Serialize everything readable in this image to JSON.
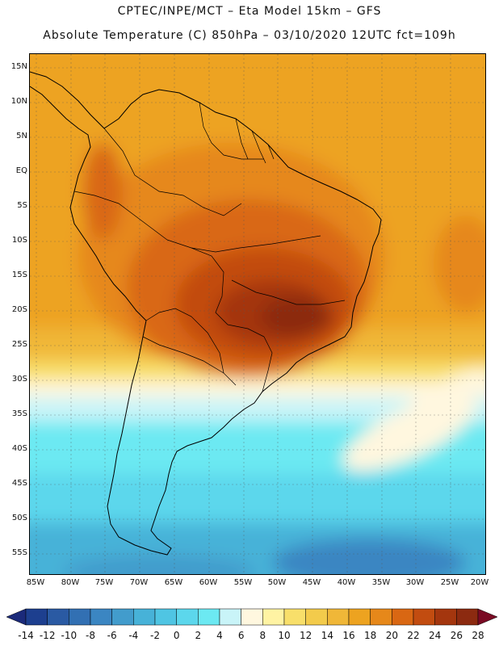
{
  "header": {
    "line1": "CPTEC/INPE/MCT –  Eta Model 15km – GFS",
    "line2": "Absolute Temperature (C) 850hPa – 03/10/2020 12UTC fct=109h"
  },
  "map": {
    "lat_labels": [
      "15N",
      "10N",
      "5N",
      "EQ",
      "5S",
      "10S",
      "15S",
      "20S",
      "25S",
      "30S",
      "35S",
      "40S",
      "45S",
      "50S",
      "55S"
    ],
    "lon_labels": [
      "85W",
      "80W",
      "75W",
      "70W",
      "65W",
      "60W",
      "55W",
      "50W",
      "45W",
      "40W",
      "35W",
      "30W",
      "25W",
      "20W"
    ],
    "region": "South America"
  },
  "colorbar": {
    "labels": [
      "-14",
      "-12",
      "-10",
      "-8",
      "-6",
      "-4",
      "-2",
      "0",
      "2",
      "4",
      "6",
      "8",
      "10",
      "12",
      "14",
      "16",
      "18",
      "20",
      "22",
      "24",
      "26",
      "28"
    ],
    "colors": [
      "#1d3f8f",
      "#2a5aa3",
      "#3270b3",
      "#3b86c2",
      "#429ccc",
      "#47b2d8",
      "#4fc5e3",
      "#5cd7ec",
      "#6ce9f2",
      "#c9f4f8",
      "#fff7df",
      "#fff3a3",
      "#f8df6a",
      "#f3cb4b",
      "#f0b738",
      "#eda320",
      "#e6881a",
      "#d96713",
      "#c24c10",
      "#a4360e",
      "#8c2a10"
    ],
    "under_color": "#1b2a7a",
    "over_color": "#7a0a24"
  }
}
